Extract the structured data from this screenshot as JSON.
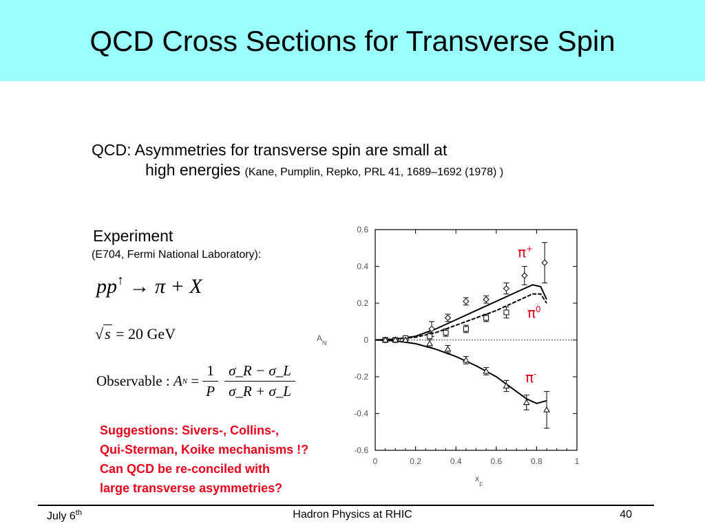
{
  "title": "QCD Cross Sections for Transverse Spin",
  "headline": {
    "line1": "QCD: Asymmetries for transverse spin are small at",
    "line2": "high energies",
    "reference": "(Kane, Pumplin, Repko, PRL 41, 1689–1692 (1978) )"
  },
  "experiment": {
    "title": "Experiment",
    "subtitle": "(E704, Fermi National Laboratory):"
  },
  "equations": {
    "reaction": {
      "beam": "pp",
      "spin": "↑",
      "arrow": "→",
      "product": "π + X"
    },
    "energy": {
      "var": "s",
      "value": "= 20 GeV"
    },
    "observable": {
      "label": "Observable :",
      "lhs": "A",
      "lhs_sub": "N",
      "eq": "=",
      "frac1_num": "1",
      "frac1_den": "P",
      "frac2_num": "σ_R − σ_L",
      "frac2_den": "σ_R + σ_L"
    }
  },
  "suggestions": [
    "Suggestions: Sivers-, Collins-,",
    "Qui-Sterman, Koike mechanisms !?",
    "Can QCD be re-conciled with",
    "large transverse asymmetries?"
  ],
  "footer": {
    "date": "July 6",
    "date_sup": "th",
    "center": "Hadron Physics at RHIC",
    "page": "40"
  },
  "colors": {
    "title_bg": "#99ffff",
    "red": "#e8001c"
  },
  "chart_data": {
    "type": "scatter",
    "xlabel": "x_F",
    "ylabel": "A_N",
    "xlim": [
      0,
      1
    ],
    "ylim": [
      -0.6,
      0.6
    ],
    "xticks": [
      "0",
      "0.2",
      "0.4",
      "0.6",
      "0.8",
      "1"
    ],
    "yticks": [
      "0.6",
      "0.4",
      "0.2",
      "0",
      "-0.2",
      "-0.4",
      "-0.6"
    ],
    "series": [
      {
        "name": "π+",
        "marker": "diamond",
        "color": "#e8001c",
        "x": [
          0.05,
          0.1,
          0.15,
          0.28,
          0.36,
          0.45,
          0.55,
          0.65,
          0.74,
          0.84
        ],
        "y": [
          0.0,
          0.0,
          0.01,
          0.06,
          0.12,
          0.21,
          0.22,
          0.28,
          0.35,
          0.42
        ],
        "err": [
          0.01,
          0.01,
          0.01,
          0.04,
          0.02,
          0.02,
          0.02,
          0.03,
          0.05,
          0.11
        ]
      },
      {
        "name": "π0",
        "marker": "square",
        "color": "#e8001c",
        "x": [
          0.05,
          0.1,
          0.15,
          0.27,
          0.35,
          0.45,
          0.55,
          0.65
        ],
        "y": [
          0.0,
          0.0,
          0.01,
          0.02,
          0.04,
          0.06,
          0.12,
          0.15
        ],
        "err": [
          0.01,
          0.01,
          0.01,
          0.02,
          0.02,
          0.02,
          0.02,
          0.03
        ]
      },
      {
        "name": "π-",
        "marker": "triangle",
        "color": "#e8001c",
        "x": [
          0.05,
          0.1,
          0.15,
          0.27,
          0.36,
          0.45,
          0.55,
          0.65,
          0.75,
          0.85
        ],
        "y": [
          0.0,
          0.0,
          0.0,
          -0.02,
          -0.05,
          -0.11,
          -0.17,
          -0.25,
          -0.34,
          -0.38
        ],
        "err": [
          0.01,
          0.01,
          0.01,
          0.02,
          0.02,
          0.02,
          0.02,
          0.03,
          0.04,
          0.1
        ]
      }
    ],
    "curves": [
      {
        "x": [
          0,
          0.1,
          0.2,
          0.3,
          0.4,
          0.5,
          0.6,
          0.7,
          0.78,
          0.82,
          0.85
        ],
        "y": [
          0,
          0.005,
          0.02,
          0.06,
          0.11,
          0.16,
          0.21,
          0.26,
          0.3,
          0.29,
          0.22
        ]
      },
      {
        "x": [
          0,
          0.1,
          0.2,
          0.3,
          0.4,
          0.5,
          0.6,
          0.7,
          0.78,
          0.82,
          0.85
        ],
        "y": [
          0,
          0.005,
          0.015,
          0.04,
          0.08,
          0.12,
          0.16,
          0.21,
          0.25,
          0.25,
          0.2
        ]
      },
      {
        "x": [
          0,
          0.1,
          0.2,
          0.3,
          0.4,
          0.5,
          0.6,
          0.7,
          0.75,
          0.8,
          0.85
        ],
        "y": [
          0,
          -0.005,
          -0.02,
          -0.05,
          -0.09,
          -0.14,
          -0.2,
          -0.28,
          -0.32,
          -0.345,
          -0.33
        ]
      }
    ]
  }
}
